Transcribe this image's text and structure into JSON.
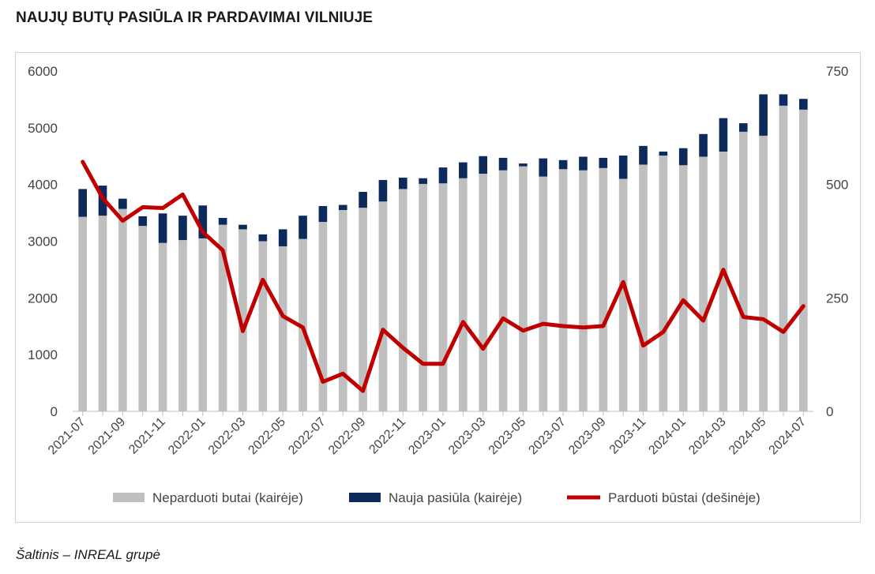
{
  "page": {
    "title": "NAUJŲ BUTŲ PASIŪLA IR PARDAVIMAI VILNIUJE",
    "source": "Šaltinis – INREAL grupė"
  },
  "chart_data": {
    "type": "bar",
    "stacked": true,
    "categories": [
      "2021-07",
      "2021-08",
      "2021-09",
      "2021-10",
      "2021-11",
      "2021-12",
      "2022-01",
      "2022-02",
      "2022-03",
      "2022-04",
      "2022-05",
      "2022-06",
      "2022-07",
      "2022-08",
      "2022-09",
      "2022-10",
      "2022-11",
      "2022-12",
      "2023-01",
      "2023-02",
      "2023-03",
      "2023-04",
      "2023-05",
      "2023-06",
      "2023-07",
      "2023-08",
      "2023-09",
      "2023-10",
      "2023-11",
      "2023-12",
      "2024-01",
      "2024-02",
      "2024-03",
      "2024-04",
      "2024-05",
      "2024-06",
      "2024-07"
    ],
    "xtick_labels": [
      "2021-07",
      "2021-09",
      "2021-11",
      "2022-01",
      "2022-03",
      "2022-05",
      "2022-07",
      "2022-09",
      "2022-11",
      "2023-01",
      "2023-03",
      "2023-05",
      "2023-07",
      "2023-09",
      "2023-11",
      "2024-01",
      "2024-03",
      "2024-05",
      "2024-07"
    ],
    "series": [
      {
        "name": "Neparduoti butai (kairėje)",
        "kind": "bar",
        "axis": "left",
        "color": "#bfbfbf",
        "values": [
          3430,
          3450,
          3570,
          3270,
          2970,
          3020,
          3050,
          3290,
          3210,
          3000,
          2910,
          3040,
          3340,
          3550,
          3590,
          3700,
          3920,
          4010,
          4020,
          4110,
          4190,
          4250,
          4320,
          4140,
          4270,
          4250,
          4290,
          4100,
          4350,
          4510,
          4340,
          4490,
          4580,
          4930,
          4860,
          5390,
          5320
        ]
      },
      {
        "name": "Nauja pasiūla (kairėje)",
        "kind": "bar",
        "axis": "left",
        "color": "#0d2a5c",
        "values": [
          490,
          530,
          180,
          170,
          520,
          430,
          580,
          120,
          80,
          120,
          300,
          410,
          280,
          90,
          280,
          380,
          200,
          100,
          280,
          280,
          310,
          220,
          50,
          320,
          160,
          240,
          180,
          410,
          330,
          70,
          300,
          400,
          590,
          150,
          730,
          200,
          190
        ]
      },
      {
        "name": "Parduoti būstai (dešinėje)",
        "kind": "line",
        "axis": "right",
        "color": "#c00000",
        "values": [
          550,
          470,
          420,
          450,
          448,
          478,
          395,
          355,
          177,
          290,
          210,
          185,
          65,
          83,
          45,
          180,
          140,
          105,
          105,
          197,
          138,
          205,
          178,
          193,
          188,
          185,
          188,
          285,
          145,
          175,
          245,
          200,
          312,
          208,
          203,
          175,
          232
        ]
      }
    ],
    "y_left": {
      "min": 0,
      "max": 6000,
      "ticks": [
        0,
        1000,
        2000,
        3000,
        4000,
        5000,
        6000
      ]
    },
    "y_right": {
      "min": 0,
      "max": 750,
      "ticks": [
        0,
        250,
        500,
        750
      ]
    },
    "grid": false,
    "legend": "bottom"
  }
}
